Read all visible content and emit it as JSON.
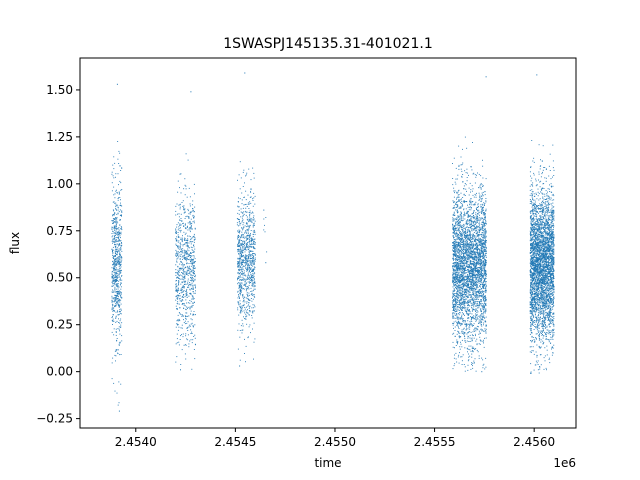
{
  "chart_data": {
    "type": "scatter",
    "title": "1SWASPJ145135.31-401021.1",
    "xlabel": "time",
    "ylabel": "flux",
    "x_offset_label": "1e6",
    "x_scale": 1000000,
    "xlim": [
      2.45372,
      2.45621
    ],
    "ylim": [
      -0.3,
      1.67
    ],
    "x_ticks": [
      2.454,
      2.4545,
      2.455,
      2.4555,
      2.456
    ],
    "x_tick_labels": [
      "2.4540",
      "2.4545",
      "2.4550",
      "2.4555",
      "2.4560"
    ],
    "y_ticks": [
      -0.25,
      0.0,
      0.25,
      0.5,
      0.75,
      1.0,
      1.25,
      1.5
    ],
    "y_tick_labels": [
      "−0.25",
      "0.00",
      "0.25",
      "0.50",
      "0.75",
      "1.00",
      "1.25",
      "1.50"
    ],
    "grid": false,
    "legend": "none",
    "marker_color": "#1f77b4",
    "series": [
      {
        "values": [
          {
            "x_range": [
              2.45388,
              2.45393
            ],
            "y_mean": 0.57,
            "y_spread": 0.22,
            "count": 700,
            "y_min": -0.21,
            "y_max": 1.53
          },
          {
            "x_range": [
              2.4542,
              2.4543
            ],
            "y_mean": 0.56,
            "y_spread": 0.2,
            "count": 800,
            "y_min": 0.01,
            "y_max": 1.49
          },
          {
            "x_range": [
              2.45451,
              2.4546
            ],
            "y_mean": 0.6,
            "y_spread": 0.18,
            "count": 900,
            "y_min": 0.03,
            "y_max": 1.59
          },
          {
            "x_range": [
              2.45464,
              2.45466
            ],
            "y_mean": 0.7,
            "y_spread": 0.1,
            "count": 6,
            "y_min": 0.58,
            "y_max": 0.86
          },
          {
            "x_range": [
              2.45559,
              2.45576
            ],
            "y_mean": 0.57,
            "y_spread": 0.2,
            "count": 3500,
            "y_min": 0.0,
            "y_max": 1.57
          },
          {
            "x_range": [
              2.45598,
              2.4561
            ],
            "y_mean": 0.57,
            "y_spread": 0.2,
            "count": 3500,
            "y_min": -0.01,
            "y_max": 1.58
          }
        ]
      }
    ]
  }
}
